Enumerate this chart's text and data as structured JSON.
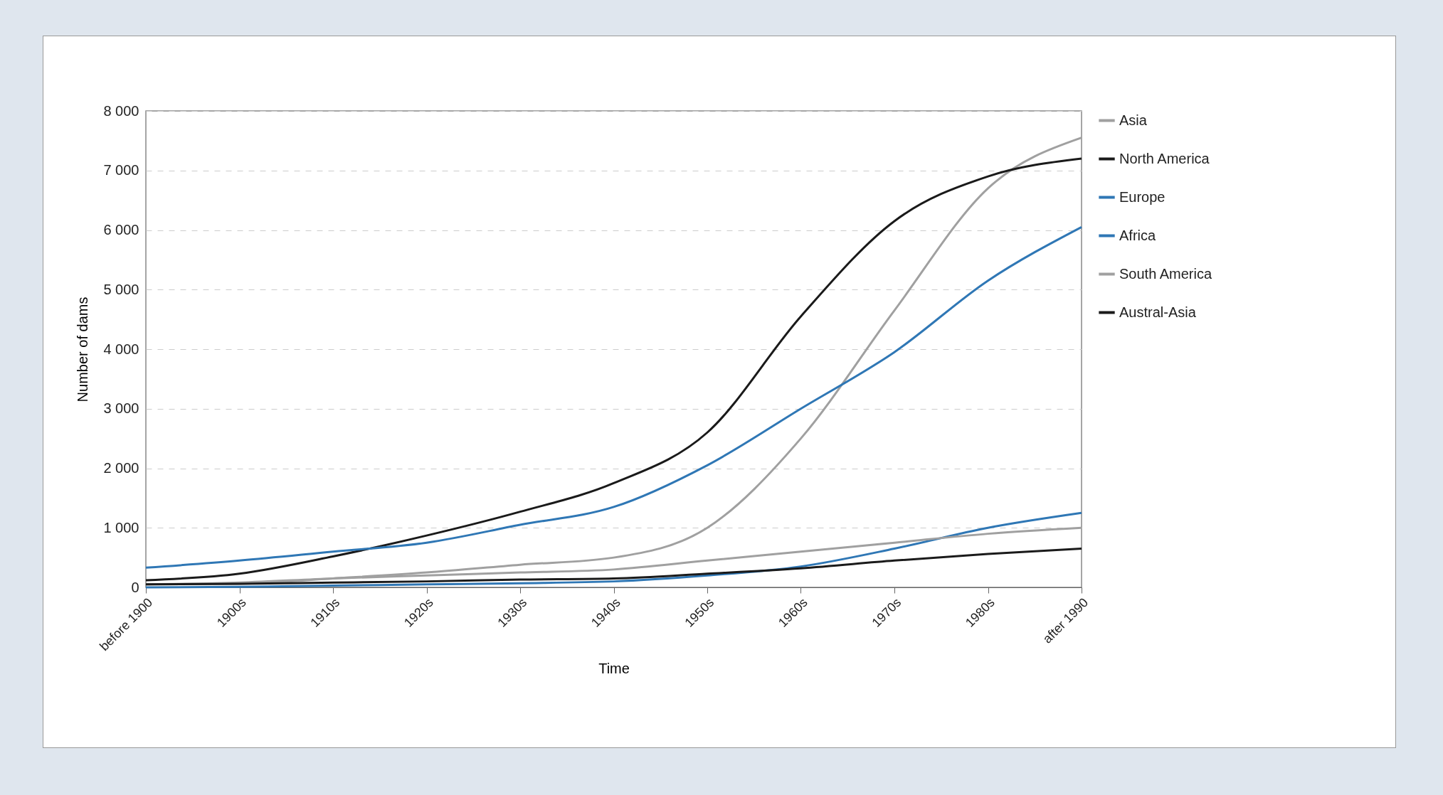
{
  "chart_data": {
    "type": "line",
    "xlabel": "Time",
    "ylabel": "Number of dams",
    "categories": [
      "before 1900",
      "1900s",
      "1910s",
      "1920s",
      "1930s",
      "1940s",
      "1950s",
      "1960s",
      "1970s",
      "1980s",
      "after 1990"
    ],
    "series": [
      {
        "name": "Asia",
        "color": "#a0a0a0",
        "values": [
          50,
          60,
          150,
          250,
          380,
          500,
          1000,
          2500,
          4650,
          6700,
          7550
        ]
      },
      {
        "name": "North America",
        "color": "#1a1a1a",
        "values": [
          120,
          230,
          520,
          870,
          1270,
          1750,
          2600,
          4550,
          6150,
          6900,
          7200
        ]
      },
      {
        "name": "Europe",
        "color": "#2f77b5",
        "values": [
          330,
          450,
          600,
          750,
          1050,
          1350,
          2050,
          3000,
          3950,
          5150,
          6050
        ]
      },
      {
        "name": "Africa",
        "color": "#2f77b5",
        "values": [
          0,
          10,
          30,
          50,
          70,
          100,
          200,
          350,
          650,
          1000,
          1250
        ]
      },
      {
        "name": "South America",
        "color": "#a0a0a0",
        "values": [
          50,
          80,
          150,
          200,
          250,
          300,
          450,
          600,
          750,
          900,
          1000
        ]
      },
      {
        "name": "Austral-Asia",
        "color": "#1a1a1a",
        "values": [
          50,
          60,
          80,
          100,
          130,
          150,
          230,
          320,
          450,
          560,
          650
        ]
      }
    ],
    "ylim": [
      0,
      8000
    ],
    "yticks": [
      0,
      {
        "value": 1000,
        "label": "1 000"
      },
      {
        "value": 2000,
        "label": "2 000"
      },
      {
        "value": 3000,
        "label": "3 000"
      },
      {
        "value": 4000,
        "label": "4 000"
      },
      {
        "value": 5000,
        "label": "5 000"
      },
      {
        "value": 6000,
        "label": "6 000"
      },
      {
        "value": 7000,
        "label": "7 000"
      },
      {
        "value": 8000,
        "label": "8 000"
      }
    ],
    "grid": "y",
    "legend": "right",
    "line_style": "solid"
  }
}
